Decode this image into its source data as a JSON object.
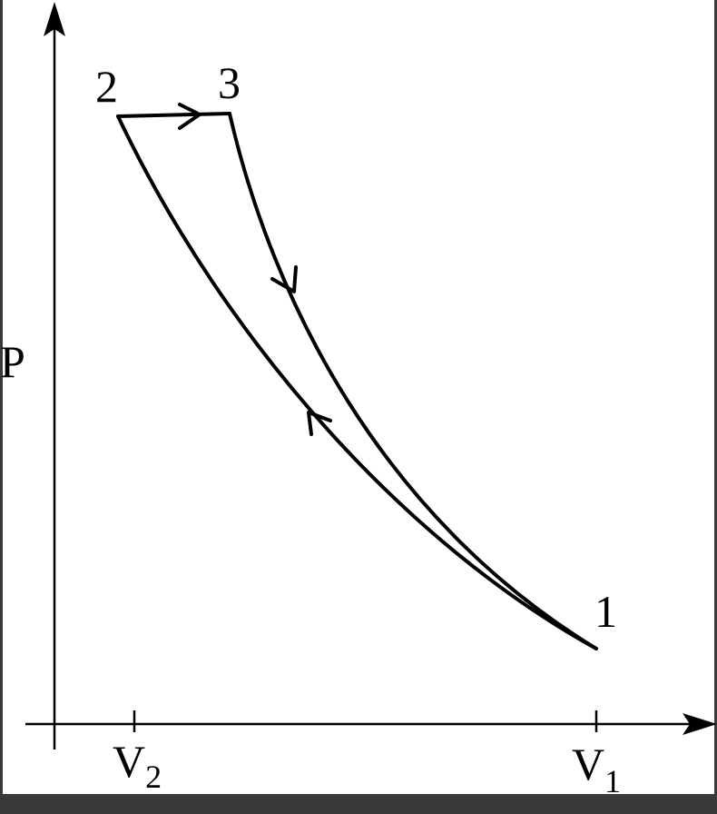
{
  "diagram": {
    "axis_label": "P",
    "points": [
      {
        "label": "1"
      },
      {
        "label": "2"
      },
      {
        "label": "3"
      }
    ],
    "ticks": [
      {
        "base": "V",
        "sub": "2"
      },
      {
        "base": "V",
        "sub": "1"
      }
    ]
  }
}
